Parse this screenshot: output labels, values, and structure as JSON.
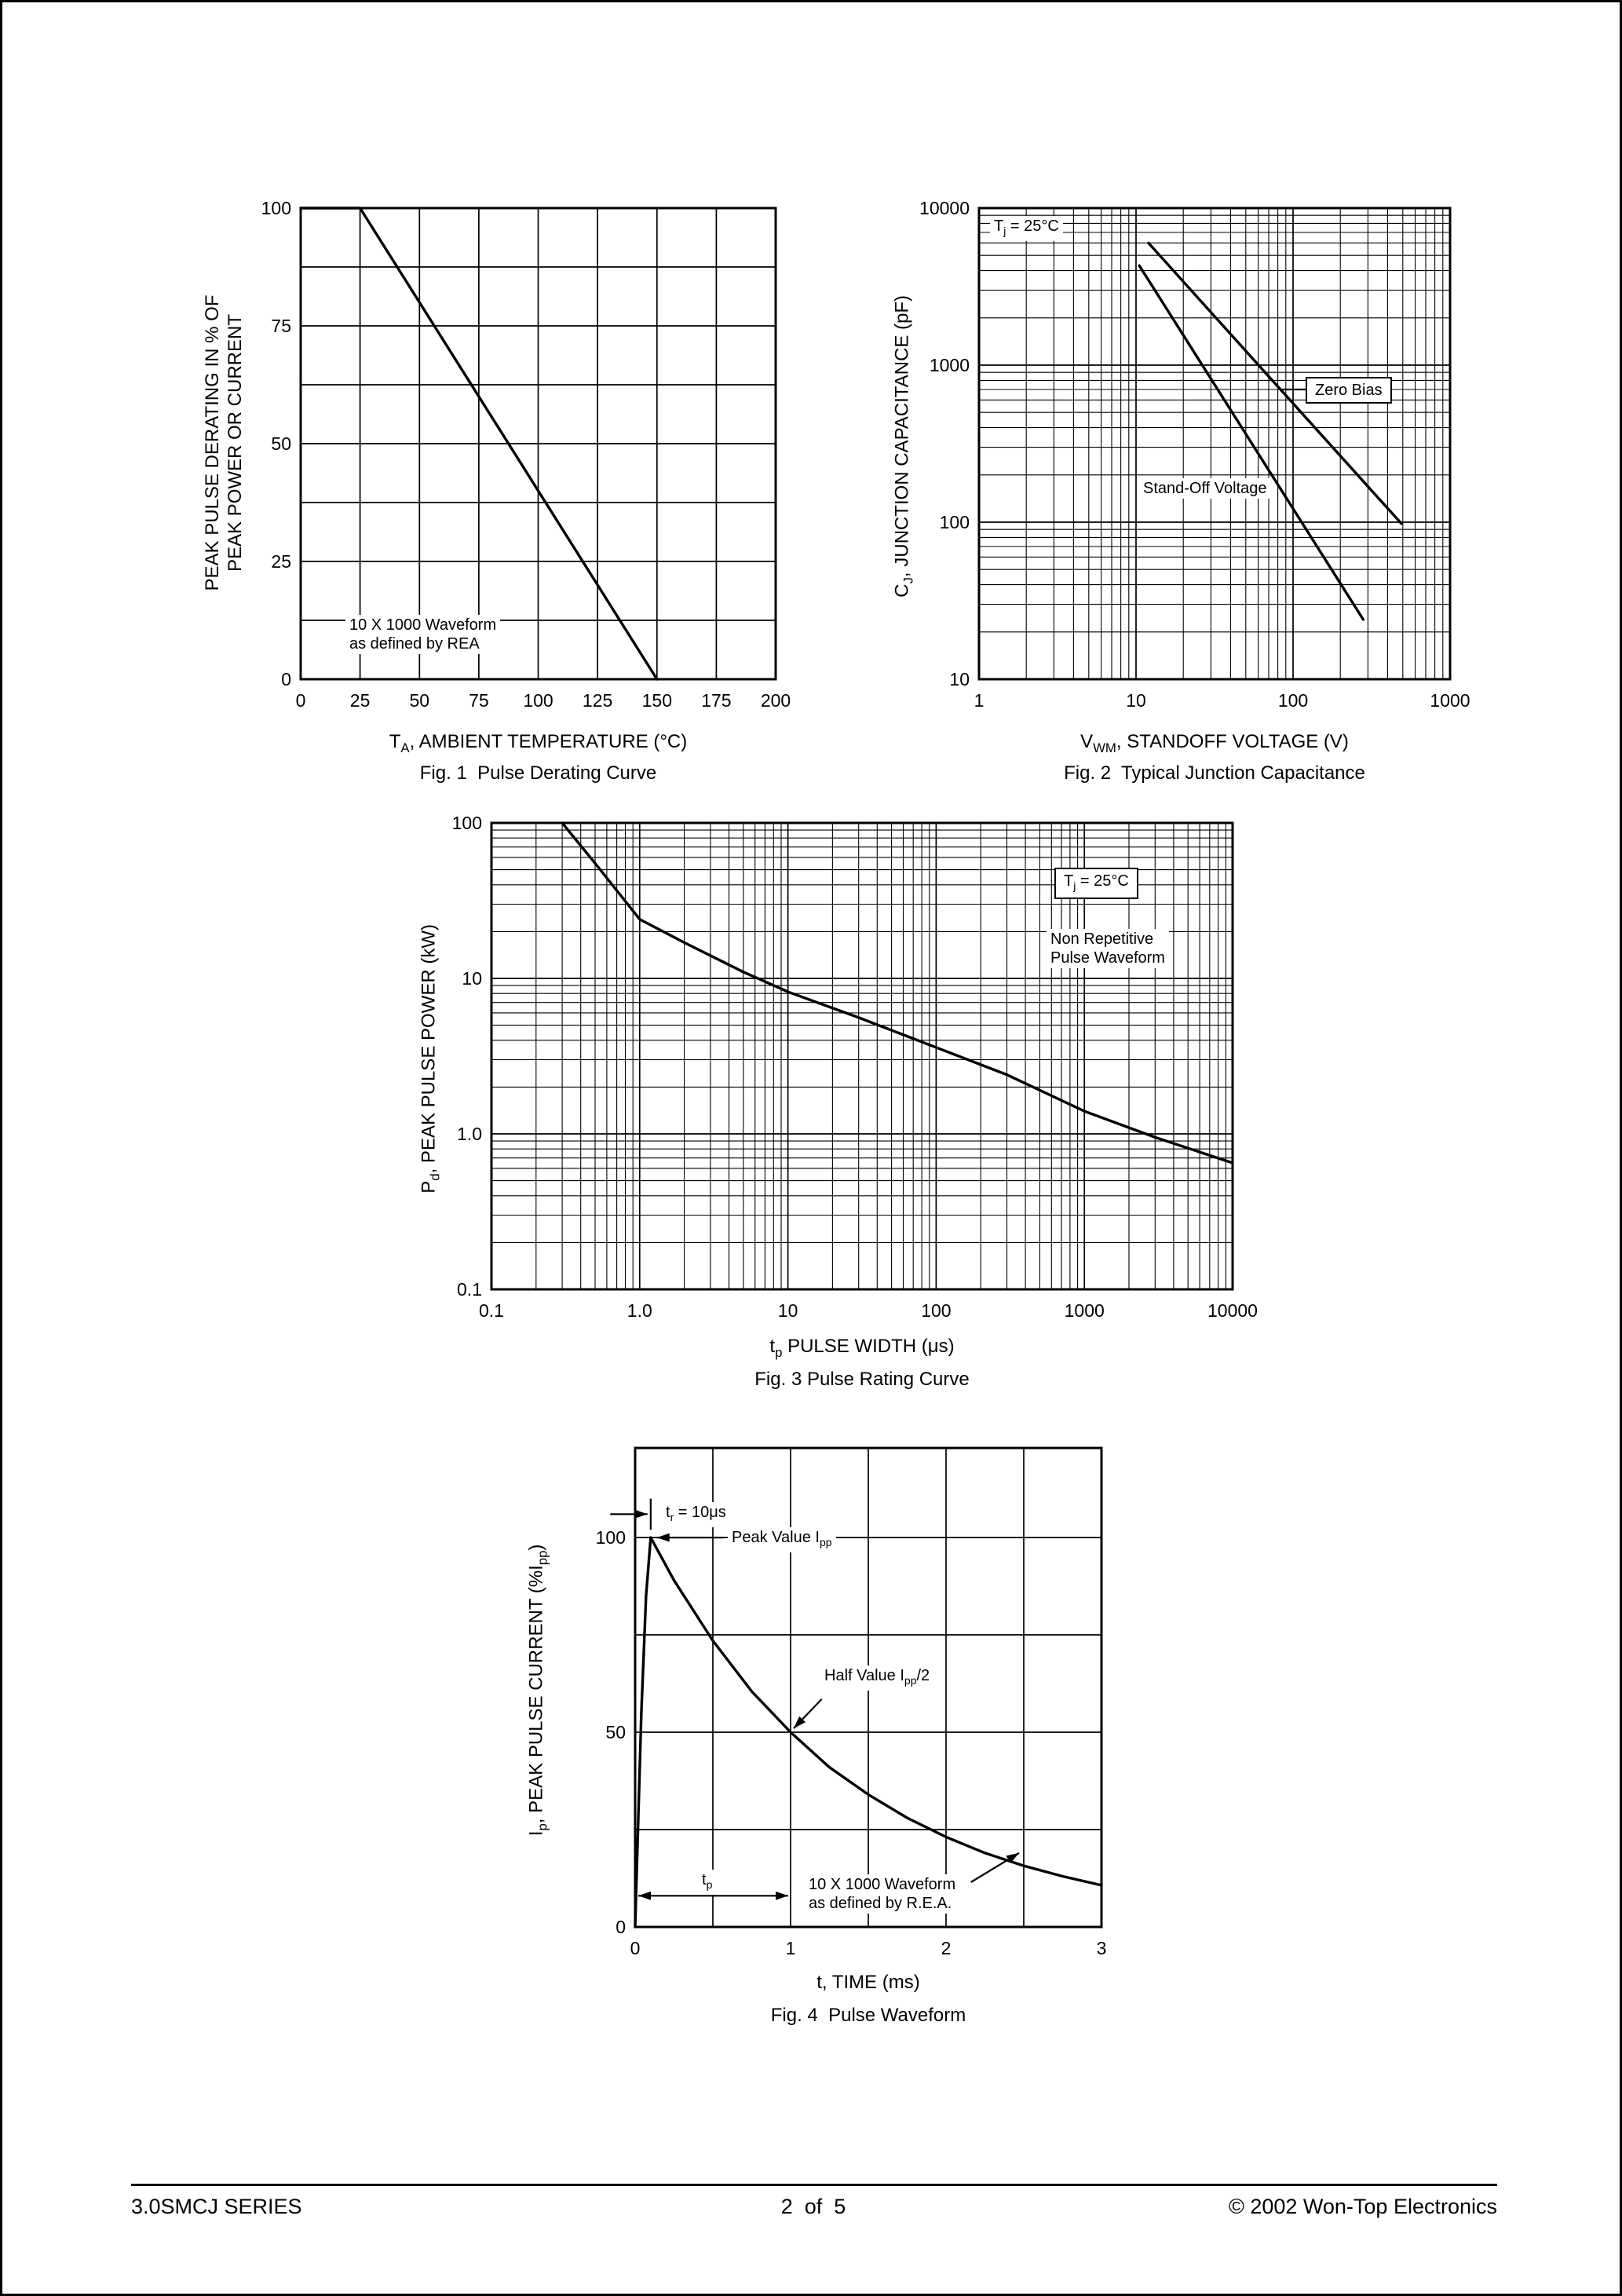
{
  "page": {
    "footer": {
      "left": "3.0SMCJ SERIES",
      "center": "2  of  5",
      "right": "© 2002 Won-Top Electronics"
    }
  },
  "chart_data": [
    {
      "id": "fig1",
      "type": "line",
      "title": "Fig. 1  Pulse Derating Curve",
      "xlabel": "TA, AMBIENT TEMPERATURE (°C)",
      "ylabel": "PEAK PULSE DERATING IN % OF PEAK POWER OR CURRENT",
      "xlabel_parts": [
        {
          "t": "T"
        },
        {
          "t": "A",
          "sub": true
        },
        {
          "t": ", AMBIENT TEMPERATURE (°C)"
        }
      ],
      "ylabel_lines": [
        "PEAK PULSE DERATING IN % OF",
        "PEAK POWER OR CURRENT"
      ],
      "x_axis": {
        "scale": "linear",
        "min": 0,
        "max": 200,
        "grid_step": 25,
        "ticks": [
          0,
          25,
          50,
          75,
          100,
          125,
          150,
          175,
          200
        ],
        "tick_labels": [
          "0",
          "25",
          "50",
          "75",
          "100",
          "125",
          "150",
          "175",
          "200"
        ]
      },
      "y_axis": {
        "scale": "linear",
        "min": 0,
        "max": 100,
        "grid_step": 12.5,
        "ticks": [
          0,
          25,
          50,
          75,
          100
        ],
        "tick_labels": [
          "0",
          "25",
          "50",
          "75",
          "100"
        ]
      },
      "series": [
        {
          "name": "peak pulse derating",
          "points": [
            [
              0,
              100
            ],
            [
              25,
              100
            ],
            [
              150,
              0
            ]
          ]
        }
      ],
      "annotations": {
        "waveform_lines": [
          "10 X 1000 Waveform",
          "as defined by REA"
        ]
      }
    },
    {
      "id": "fig2",
      "type": "line",
      "title": "Fig. 2  Typical Junction Capacitance",
      "xlabel": "VWM, STANDOFF VOLTAGE (V)",
      "ylabel": "CJ, JUNCTION CAPACITANCE (pF)",
      "xlabel_parts": [
        {
          "t": "V"
        },
        {
          "t": "WM",
          "sub": true
        },
        {
          "t": ", STANDOFF VOLTAGE (V)"
        }
      ],
      "ylabel_parts": [
        {
          "t": "C"
        },
        {
          "t": "J",
          "sub": true
        },
        {
          "t": ", JUNCTION CAPACITANCE (pF)"
        }
      ],
      "x_axis": {
        "scale": "log",
        "min": 1,
        "max": 1000,
        "ticks": [
          1,
          10,
          100,
          1000
        ],
        "tick_labels": [
          "1",
          "10",
          "100",
          "1000"
        ]
      },
      "y_axis": {
        "scale": "log",
        "min": 10,
        "max": 10000,
        "ticks": [
          10,
          100,
          1000,
          10000
        ],
        "tick_labels": [
          "10",
          "100",
          "1000",
          "10000"
        ]
      },
      "series": [
        {
          "name": "Zero Bias",
          "points": [
            [
              12,
              6000
            ],
            [
              490,
              98
            ]
          ]
        },
        {
          "name": "Stand-Off Voltage",
          "points": [
            [
              10.5,
              4300
            ],
            [
              280,
              24
            ]
          ]
        }
      ],
      "arrows": [
        {
          "from": [
            85,
            700
          ],
          "to": [
            122,
            700
          ],
          "head": "none"
        }
      ],
      "annotations": {
        "temp_parts": [
          {
            "t": "T"
          },
          {
            "t": "j",
            "sub": true
          },
          {
            "t": " = 25°C"
          }
        ],
        "zero_bias": "Zero Bias",
        "standoff": "Stand-Off Voltage"
      }
    },
    {
      "id": "fig3",
      "type": "line",
      "title": "Fig. 3 Pulse Rating Curve",
      "xlabel": "tp PULSE WIDTH (μs)",
      "ylabel": "Pd, PEAK PULSE POWER (kW)",
      "xlabel_parts": [
        {
          "t": "t"
        },
        {
          "t": "p",
          "sub": true
        },
        {
          "t": " PULSE WIDTH (μs)"
        }
      ],
      "ylabel_parts": [
        {
          "t": "P"
        },
        {
          "t": "d",
          "sub": true
        },
        {
          "t": ", PEAK PULSE POWER (kW)"
        }
      ],
      "x_axis": {
        "scale": "log",
        "min": 0.1,
        "max": 10000,
        "ticks": [
          0.1,
          1,
          10,
          100,
          1000,
          10000
        ],
        "tick_labels": [
          "0.1",
          "1.0",
          "10",
          "100",
          "1000",
          "10000"
        ]
      },
      "y_axis": {
        "scale": "log",
        "min": 0.1,
        "max": 100,
        "ticks": [
          0.1,
          1,
          10,
          100
        ],
        "tick_labels": [
          "0.1",
          "1.0",
          "10",
          "100"
        ]
      },
      "series": [
        {
          "name": "peak pulse power",
          "points": [
            [
              0.3,
              100
            ],
            [
              0.5,
              55
            ],
            [
              1,
              24
            ],
            [
              2,
              17
            ],
            [
              5,
              11
            ],
            [
              10,
              8.2
            ],
            [
              30,
              5.6
            ],
            [
              100,
              3.6
            ],
            [
              300,
              2.4
            ],
            [
              1000,
              1.4
            ],
            [
              3000,
              0.95
            ],
            [
              10000,
              0.65
            ]
          ]
        }
      ],
      "annotations": {
        "temp_parts": [
          {
            "t": "T"
          },
          {
            "t": "j",
            "sub": true
          },
          {
            "t": " = 25°C"
          }
        ],
        "nonrep_lines": [
          "Non Repetitive",
          "Pulse Waveform"
        ]
      }
    },
    {
      "id": "fig4",
      "type": "line",
      "title": "Fig. 4  Pulse Waveform",
      "xlabel": "t, TIME (ms)",
      "ylabel": "Ip, PEAK PULSE CURRENT (%Ipp)",
      "ylabel_parts": [
        {
          "t": "I"
        },
        {
          "t": "p",
          "sub": true
        },
        {
          "t": ", PEAK PULSE CURRENT (%I"
        },
        {
          "t": "pp",
          "sub": true
        },
        {
          "t": ")"
        }
      ],
      "x_axis": {
        "scale": "linear",
        "min": 0,
        "max": 3,
        "grid_step": 0.5,
        "ticks": [
          0,
          1,
          2,
          3
        ],
        "tick_labels": [
          "0",
          "1",
          "2",
          "3"
        ]
      },
      "y_axis": {
        "scale": "linear",
        "min": 0,
        "max": 123,
        "grid_step": 25,
        "ticks": [
          0,
          50,
          100
        ],
        "tick_labels": [
          "0",
          "50",
          "100"
        ]
      },
      "series": [
        {
          "name": "pulse waveform",
          "points": [
            [
              0,
              0
            ],
            [
              0.04,
              55
            ],
            [
              0.07,
              85
            ],
            [
              0.1,
              100
            ],
            [
              0.25,
              89
            ],
            [
              0.5,
              73.5
            ],
            [
              0.75,
              60.5
            ],
            [
              1,
              50
            ],
            [
              1.25,
              41
            ],
            [
              1.5,
              34
            ],
            [
              1.75,
              28
            ],
            [
              2,
              23.1
            ],
            [
              2.25,
              19
            ],
            [
              2.5,
              15.7
            ],
            [
              2.75,
              13
            ],
            [
              3,
              10.7
            ]
          ]
        }
      ],
      "arrows": [
        {
          "from": [
            -0.16,
            106
          ],
          "to": [
            0.08,
            106
          ],
          "head": "end"
        },
        {
          "from": [
            0.1,
            110
          ],
          "to": [
            0.1,
            102
          ],
          "head": "none"
        },
        {
          "from": [
            0.57,
            100
          ],
          "to": [
            0.14,
            100
          ],
          "head": "end"
        },
        {
          "from": [
            1.2,
            58.5
          ],
          "to": [
            1.02,
            51
          ],
          "head": "end"
        },
        {
          "from": [
            0.02,
            8
          ],
          "to": [
            0.985,
            8
          ],
          "head": "both"
        },
        {
          "from": [
            2.16,
            11.5
          ],
          "to": [
            2.47,
            19
          ],
          "head": "end"
        }
      ],
      "annotations": {
        "tr_parts": [
          {
            "t": "t"
          },
          {
            "t": "r",
            "sub": true
          },
          {
            "t": " = 10μs"
          }
        ],
        "peak_parts": [
          {
            "t": "Peak Value I"
          },
          {
            "t": "pp",
            "sub": true
          }
        ],
        "half_parts": [
          {
            "t": "Half Value I"
          },
          {
            "t": "pp",
            "sub": true
          },
          {
            "t": "/2"
          }
        ],
        "tp_parts": [
          {
            "t": "t"
          },
          {
            "t": "p",
            "sub": true
          }
        ],
        "waveform_lines": [
          "10 X 1000 Waveform",
          "as defined by R.E.A."
        ]
      }
    }
  ]
}
